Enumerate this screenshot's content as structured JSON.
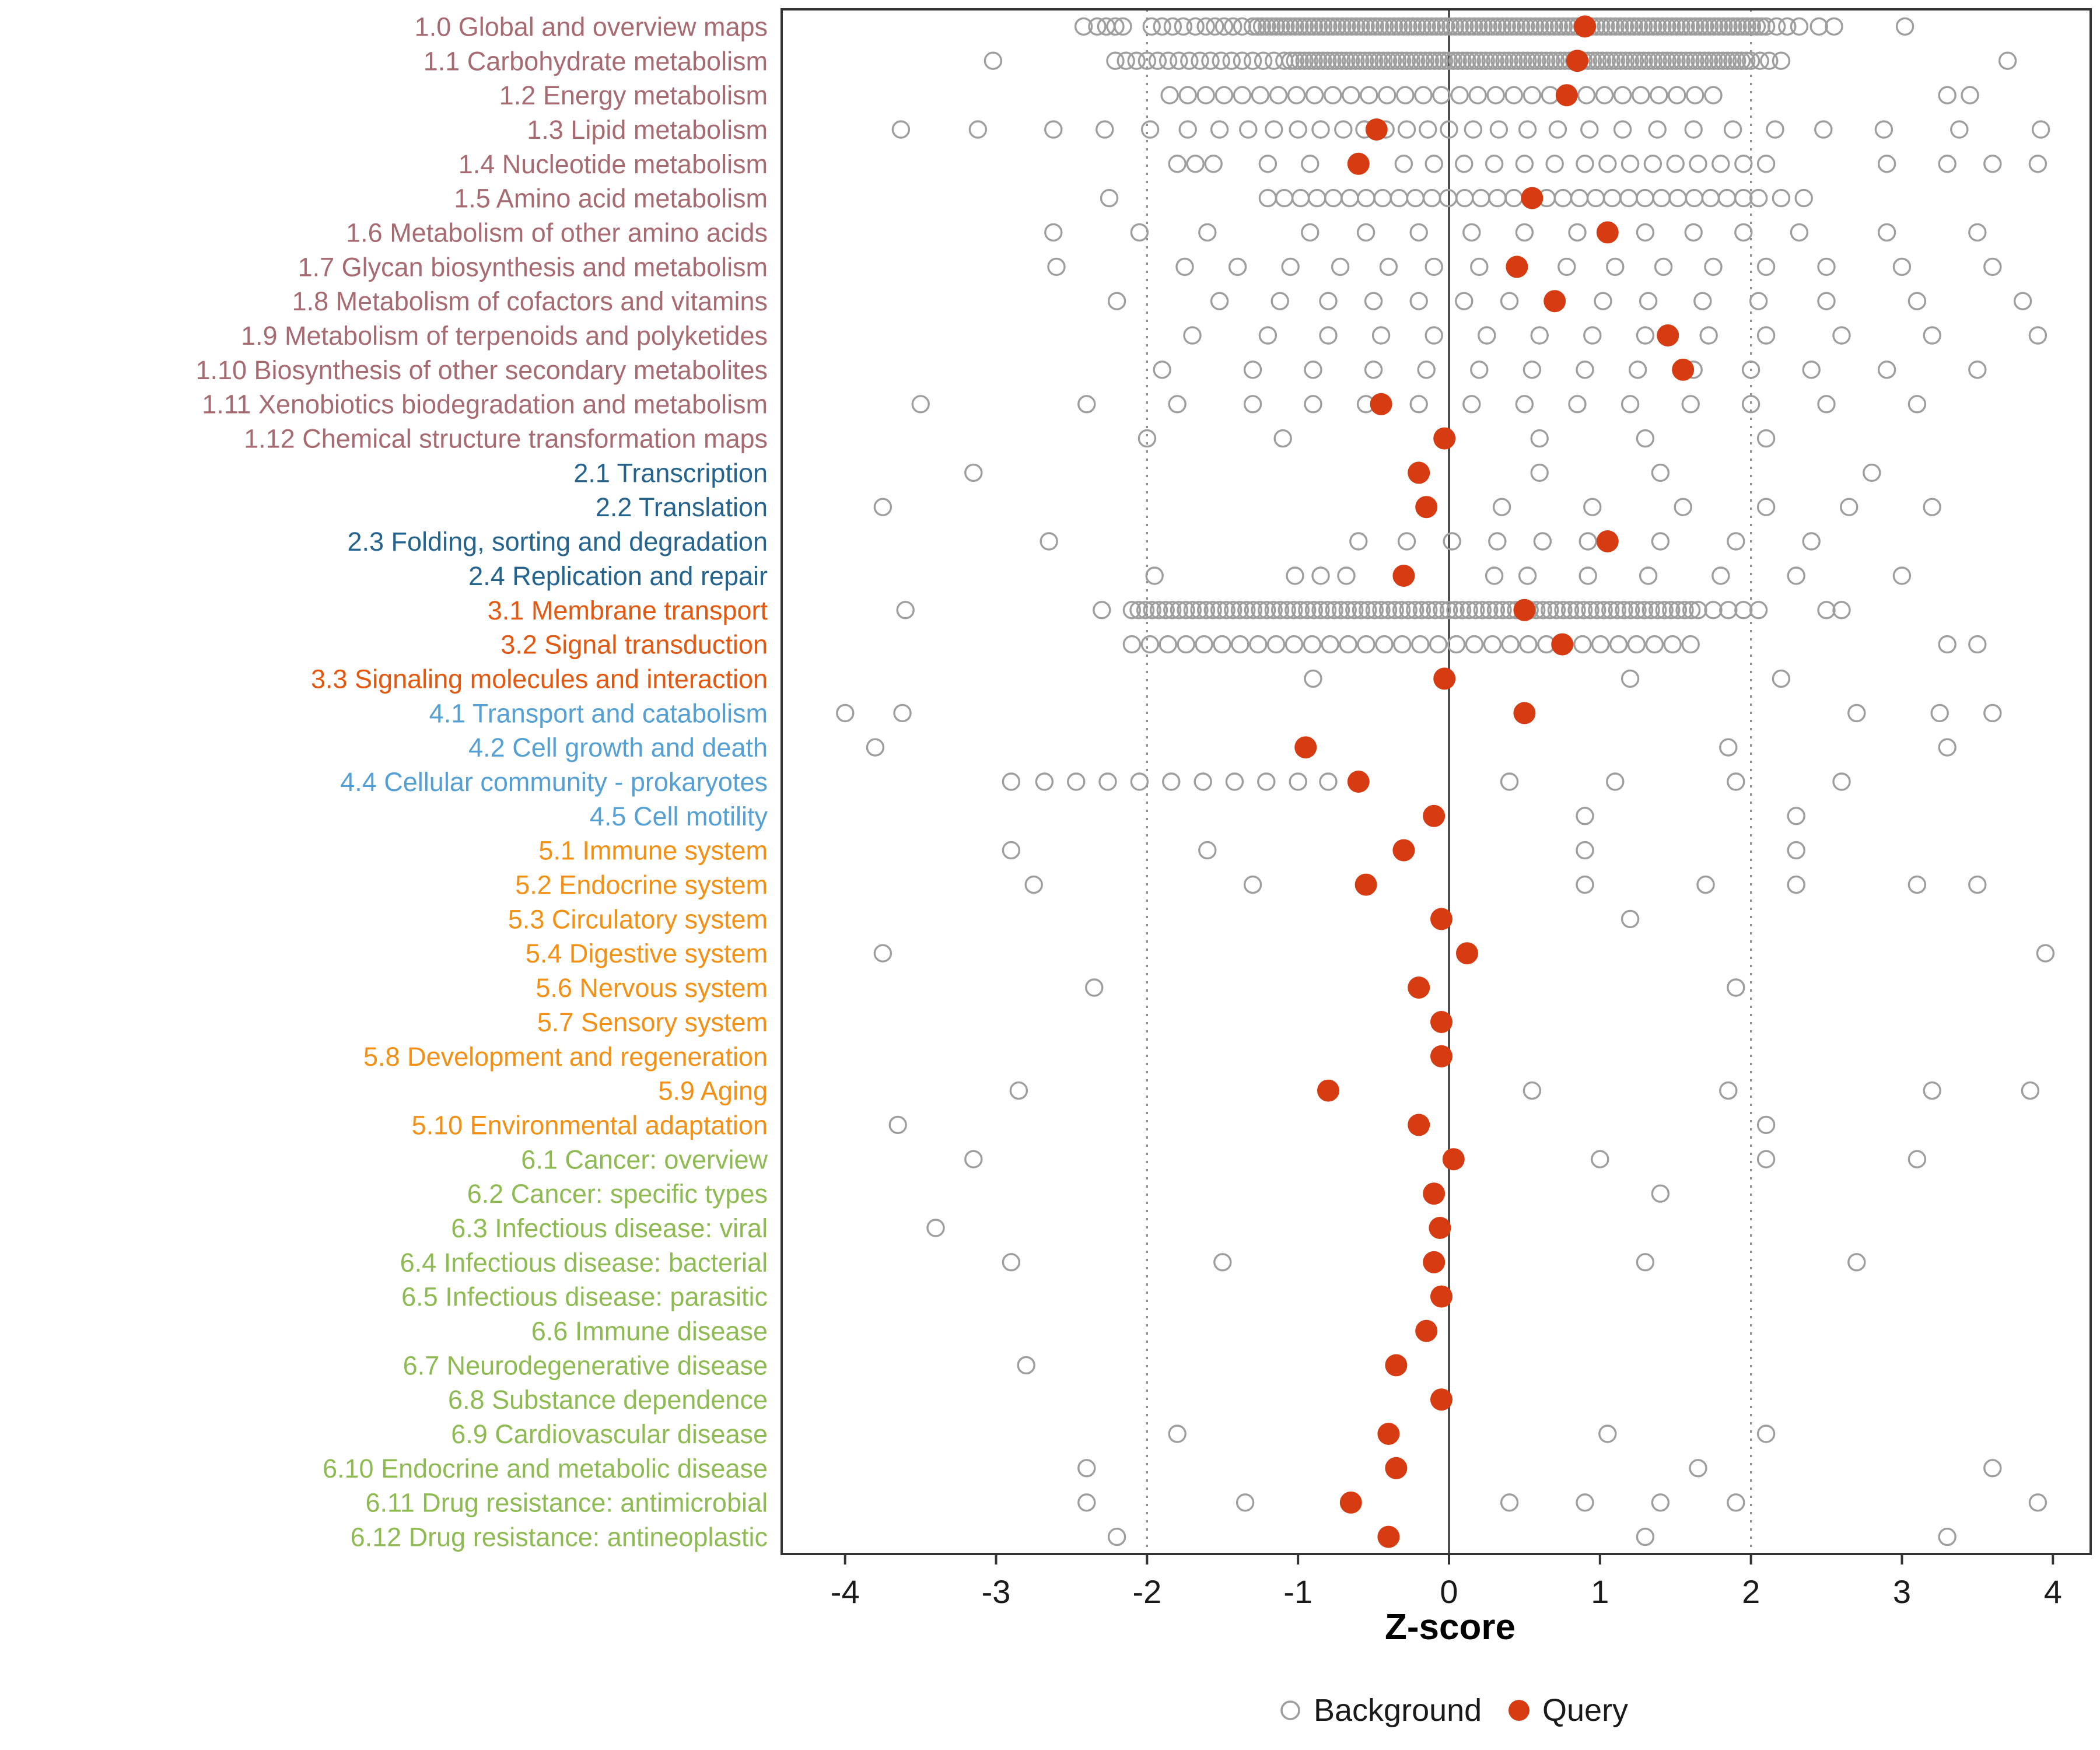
{
  "chart_data": {
    "type": "scatter",
    "title": "",
    "xlabel": "Z-score",
    "xlim": [
      -4.42,
      4.25
    ],
    "x_ticks": [
      -4,
      -3,
      -2,
      -1,
      0,
      1,
      2,
      3,
      4
    ],
    "grid": false,
    "legend_position": "bottom",
    "reference_lines": {
      "solid": [
        0
      ],
      "dotted": [
        -2,
        2
      ]
    },
    "legend": [
      {
        "label": "Background",
        "marker": "open-circle",
        "color": "#9e9e9e"
      },
      {
        "label": "Query",
        "marker": "filled-circle",
        "color": "#d63b12"
      }
    ],
    "colors": {
      "query": "#d63b12",
      "background_stroke": "#9e9e9e",
      "axis_line": "#333333",
      "zero_line": "#4d4d4d",
      "dotted_line": "#8a8a8a",
      "groups": {
        "1": "#a76a70",
        "2": "#23638d",
        "3": "#e4570f",
        "4": "#54a0d4",
        "5": "#f39014",
        "6": "#8eba52"
      }
    },
    "rows": [
      {
        "label": "1.0 Global and overview maps",
        "group": "1",
        "query": 0.9,
        "background_band": [
          -1.3,
          2.1,
          110
        ],
        "background": [
          -2.42,
          -2.33,
          -2.27,
          -2.21,
          -2.16,
          -1.97,
          -1.9,
          -1.83,
          -1.76,
          -1.68,
          -1.61,
          -1.55,
          -1.49,
          -1.43,
          -1.37,
          2.17,
          2.24,
          2.32,
          2.45,
          2.55,
          3.02
        ]
      },
      {
        "label": "1.1 Carbohydrate metabolism",
        "group": "1",
        "query": 0.85,
        "background_band": [
          -1.05,
          2.0,
          100
        ],
        "background": [
          -3.02,
          -2.21,
          -2.14,
          -2.07,
          -2.0,
          -1.93,
          -1.86,
          -1.79,
          -1.72,
          -1.65,
          -1.58,
          -1.51,
          -1.44,
          -1.37,
          -1.3,
          -1.23,
          -1.16,
          -1.09,
          2.06,
          2.12,
          2.2,
          3.7
        ]
      },
      {
        "label": "1.2 Energy metabolism",
        "group": "1",
        "query": 0.78,
        "background_band": [
          -1.85,
          1.75,
          31
        ],
        "background": [
          3.3,
          3.45
        ]
      },
      {
        "label": "1.3 Lipid metabolism",
        "group": "1",
        "query": -0.48,
        "background": [
          -3.63,
          -3.12,
          -2.62,
          -2.28,
          -1.98,
          -1.73,
          -1.52,
          -1.33,
          -1.16,
          -1.0,
          -0.85,
          -0.7,
          -0.56,
          -0.42,
          -0.28,
          -0.14,
          0.0,
          0.16,
          0.33,
          0.52,
          0.72,
          0.93,
          1.15,
          1.38,
          1.62,
          1.88,
          2.16,
          2.48,
          2.88,
          3.38,
          3.92
        ]
      },
      {
        "label": "1.4 Nucleotide metabolism",
        "group": "1",
        "query": -0.6,
        "background": [
          -1.8,
          -1.68,
          -1.56,
          -1.2,
          -0.92,
          -0.3,
          -0.1,
          0.1,
          0.3,
          0.5,
          0.7,
          0.9,
          1.05,
          1.2,
          1.35,
          1.5,
          1.65,
          1.8,
          1.95,
          2.1,
          2.9,
          3.3,
          3.6,
          3.9
        ]
      },
      {
        "label": "1.5 Amino acid metabolism",
        "group": "1",
        "query": 0.55,
        "background_band": [
          -1.2,
          1.95,
          30
        ],
        "background": [
          -2.25,
          2.05,
          2.2,
          2.35
        ]
      },
      {
        "label": "1.6 Metabolism of other amino acids",
        "group": "1",
        "query": 1.05,
        "background": [
          -2.62,
          -2.05,
          -1.6,
          -0.92,
          -0.55,
          -0.2,
          0.15,
          0.5,
          0.85,
          1.3,
          1.62,
          1.95,
          2.32,
          2.9,
          3.5
        ]
      },
      {
        "label": "1.7 Glycan biosynthesis and metabolism",
        "group": "1",
        "query": 0.45,
        "background": [
          -2.6,
          -1.75,
          -1.4,
          -1.05,
          -0.72,
          -0.4,
          -0.1,
          0.2,
          0.78,
          1.1,
          1.42,
          1.75,
          2.1,
          2.5,
          3.0,
          3.6
        ]
      },
      {
        "label": "1.8 Metabolism of cofactors and vitamins",
        "group": "1",
        "query": 0.7,
        "background": [
          -2.2,
          -1.52,
          -1.12,
          -0.8,
          -0.5,
          -0.2,
          0.1,
          0.4,
          1.02,
          1.32,
          1.68,
          2.05,
          2.5,
          3.1,
          3.8
        ]
      },
      {
        "label": "1.9 Metabolism of terpenoids and polyketides",
        "group": "1",
        "query": 1.45,
        "background": [
          -1.7,
          -1.2,
          -0.8,
          -0.45,
          -0.1,
          0.25,
          0.6,
          0.95,
          1.3,
          1.72,
          2.1,
          2.6,
          3.2,
          3.9
        ]
      },
      {
        "label": "1.10 Biosynthesis of other secondary metabolites",
        "group": "1",
        "query": 1.55,
        "background": [
          -1.9,
          -1.3,
          -0.9,
          -0.5,
          -0.15,
          0.2,
          0.55,
          0.9,
          1.25,
          1.62,
          2.0,
          2.4,
          2.9,
          3.5
        ]
      },
      {
        "label": "1.11 Xenobiotics biodegradation and metabolism",
        "group": "1",
        "query": -0.45,
        "background": [
          -3.5,
          -2.4,
          -1.8,
          -1.3,
          -0.9,
          -0.55,
          -0.2,
          0.15,
          0.5,
          0.85,
          1.2,
          1.6,
          2.0,
          2.5,
          3.1
        ]
      },
      {
        "label": "1.12 Chemical structure transformation maps",
        "group": "1",
        "query": -0.03,
        "background": [
          -2.0,
          -1.1,
          0.6,
          1.3,
          2.1
        ]
      },
      {
        "label": "2.1 Transcription",
        "group": "2",
        "query": -0.2,
        "background": [
          -3.15,
          0.6,
          1.4,
          2.8
        ]
      },
      {
        "label": "2.2 Translation",
        "group": "2",
        "query": -0.15,
        "background": [
          -3.75,
          0.35,
          0.95,
          1.55,
          2.1,
          2.65,
          3.2
        ]
      },
      {
        "label": "2.3 Folding, sorting and degradation",
        "group": "2",
        "query": 1.05,
        "background": [
          -2.65,
          -0.6,
          -0.28,
          0.02,
          0.32,
          0.62,
          0.92,
          1.4,
          1.9,
          2.4
        ]
      },
      {
        "label": "2.4 Replication and repair",
        "group": "2",
        "query": -0.3,
        "background": [
          -1.95,
          -1.02,
          -0.85,
          -0.68,
          0.3,
          0.52,
          0.92,
          1.32,
          1.8,
          2.3,
          3.0
        ]
      },
      {
        "label": "3.1 Membrane transport",
        "group": "3",
        "query": 0.5,
        "background_band": [
          -2.1,
          1.65,
          85
        ],
        "background": [
          -3.6,
          -2.3,
          1.75,
          1.85,
          1.95,
          2.05,
          2.5,
          2.6
        ]
      },
      {
        "label": "3.2 Signal transduction",
        "group": "3",
        "query": 0.75,
        "background_band": [
          -2.1,
          1.6,
          32
        ],
        "background": [
          3.3,
          3.5
        ]
      },
      {
        "label": "3.3 Signaling molecules and interaction",
        "group": "3",
        "query": -0.03,
        "background": [
          -0.9,
          1.2,
          2.2
        ]
      },
      {
        "label": "4.1 Transport and catabolism",
        "group": "4",
        "query": 0.5,
        "background": [
          -4.0,
          -3.62,
          2.7,
          3.25,
          3.6
        ]
      },
      {
        "label": "4.2 Cell growth and death",
        "group": "4",
        "query": -0.95,
        "background": [
          -3.8,
          1.85,
          3.3
        ]
      },
      {
        "label": "4.4 Cellular community - prokaryotes",
        "group": "4",
        "query": -0.6,
        "background": [
          -2.9,
          -2.68,
          -2.47,
          -2.26,
          -2.05,
          -1.84,
          -1.63,
          -1.42,
          -1.21,
          -1.0,
          -0.8,
          0.4,
          1.1,
          1.9,
          2.6
        ]
      },
      {
        "label": "4.5 Cell motility",
        "group": "4",
        "query": -0.1,
        "background": [
          0.9,
          2.3
        ]
      },
      {
        "label": "5.1 Immune system",
        "group": "5",
        "query": -0.3,
        "background": [
          -2.9,
          -1.6,
          0.9,
          2.3
        ]
      },
      {
        "label": "5.2 Endocrine system",
        "group": "5",
        "query": -0.55,
        "background": [
          -2.75,
          -1.3,
          0.9,
          1.7,
          2.3,
          3.1,
          3.5
        ]
      },
      {
        "label": "5.3 Circulatory system",
        "group": "5",
        "query": -0.05,
        "background": [
          1.2
        ]
      },
      {
        "label": "5.4 Digestive system",
        "group": "5",
        "query": 0.12,
        "background": [
          -3.75,
          3.95
        ]
      },
      {
        "label": "5.6 Nervous system",
        "group": "5",
        "query": -0.2,
        "background": [
          -2.35,
          1.9
        ]
      },
      {
        "label": "5.7 Sensory system",
        "group": "5",
        "query": -0.05,
        "background": []
      },
      {
        "label": "5.8 Development and regeneration",
        "group": "5",
        "query": -0.05,
        "background": []
      },
      {
        "label": "5.9 Aging",
        "group": "5",
        "query": -0.8,
        "background": [
          -2.85,
          0.55,
          1.85,
          3.2,
          3.85
        ]
      },
      {
        "label": "5.10 Environmental adaptation",
        "group": "5",
        "query": -0.2,
        "background": [
          -3.65,
          2.1
        ]
      },
      {
        "label": "6.1 Cancer: overview",
        "group": "6",
        "query": 0.03,
        "background": [
          -3.15,
          1.0,
          2.1,
          3.1
        ]
      },
      {
        "label": "6.2 Cancer: specific types",
        "group": "6",
        "query": -0.1,
        "background": [
          1.4
        ]
      },
      {
        "label": "6.3 Infectious disease: viral",
        "group": "6",
        "query": -0.06,
        "background": [
          -3.4
        ]
      },
      {
        "label": "6.4 Infectious disease: bacterial",
        "group": "6",
        "query": -0.1,
        "background": [
          -2.9,
          -1.5,
          1.3,
          2.7
        ]
      },
      {
        "label": "6.5 Infectious disease: parasitic",
        "group": "6",
        "query": -0.05,
        "background": []
      },
      {
        "label": "6.6 Immune disease",
        "group": "6",
        "query": -0.15,
        "background": []
      },
      {
        "label": "6.7 Neurodegenerative disease",
        "group": "6",
        "query": -0.35,
        "background": [
          -2.8
        ]
      },
      {
        "label": "6.8 Substance dependence",
        "group": "6",
        "query": -0.05,
        "background": []
      },
      {
        "label": "6.9 Cardiovascular disease",
        "group": "6",
        "query": -0.4,
        "background": [
          -1.8,
          1.05,
          2.1
        ]
      },
      {
        "label": "6.10 Endocrine and metabolic disease",
        "group": "6",
        "query": -0.35,
        "background": [
          -2.4,
          1.65,
          3.6
        ]
      },
      {
        "label": "6.11 Drug resistance: antimicrobial",
        "group": "6",
        "query": -0.65,
        "background": [
          -2.4,
          -1.35,
          0.4,
          0.9,
          1.4,
          1.9,
          3.9
        ]
      },
      {
        "label": "6.12 Drug resistance: antineoplastic",
        "group": "6",
        "query": -0.4,
        "background": [
          -2.2,
          1.3,
          3.3
        ]
      }
    ]
  }
}
